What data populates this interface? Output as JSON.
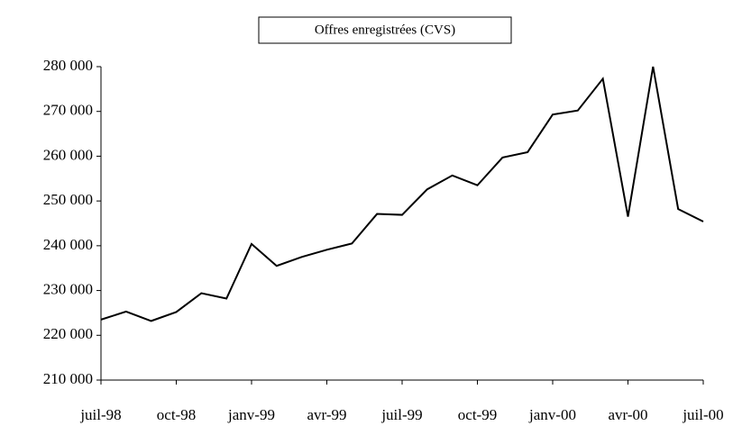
{
  "chart_data": {
    "type": "line",
    "title": "Offres enregistrées (CVS)",
    "categories": [
      "juil-98",
      null,
      null,
      "oct-98",
      null,
      null,
      "janv-99",
      null,
      null,
      "avr-99",
      null,
      null,
      "juil-99",
      null,
      null,
      "oct-99",
      null,
      null,
      "janv-00",
      null,
      null,
      "avr-00",
      null,
      null,
      "juil-00"
    ],
    "series": [
      {
        "name": null,
        "color": "#000000",
        "values": [
          223500,
          225300,
          223200,
          225200,
          229400,
          228200,
          240400,
          235500,
          237500,
          239100,
          240500,
          247100,
          246900,
          252600,
          255700,
          253500,
          259700,
          260900,
          269300,
          270200,
          277300,
          246500,
          280000,
          248200,
          245400
        ]
      }
    ],
    "ylim": [
      210000,
      280000
    ],
    "yticks": [
      {
        "value": 210000,
        "label": "210 000"
      },
      {
        "value": 220000,
        "label": "220 000"
      },
      {
        "value": 230000,
        "label": "230 000"
      },
      {
        "value": 240000,
        "label": "240 000"
      },
      {
        "value": 250000,
        "label": "250 000"
      },
      {
        "value": 260000,
        "label": "260 000"
      },
      {
        "value": 270000,
        "label": "270 000"
      },
      {
        "value": 280000,
        "label": "280 000"
      }
    ],
    "grid": false
  }
}
